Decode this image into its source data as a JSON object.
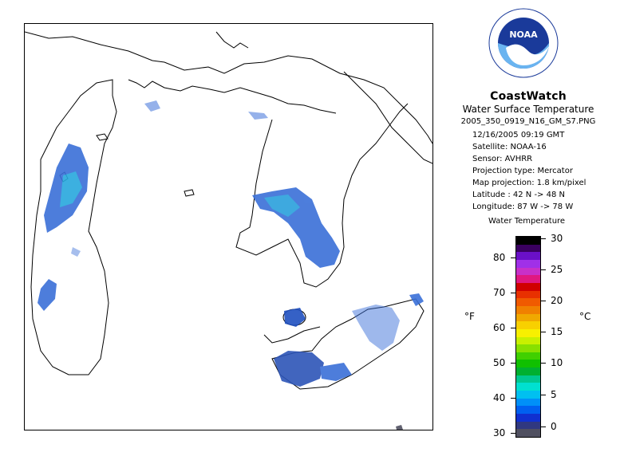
{
  "map": {
    "region": "Great Lakes (Lake Michigan, Lake Huron, Lake St. Clair, Lake Erie)"
  },
  "legend": {
    "app_title": "CoastWatch",
    "product": "Water Surface Temperature",
    "filename": "2005_350_0919_N16_GM_S7.PNG",
    "datetime": "12/16/2005   09:19 GMT",
    "satellite": "Satellite: NOAA-16",
    "sensor": "Sensor: AVHRR",
    "projection_type": "Projection type:  Mercator",
    "map_projection": "Map projection: 1.8 km/pixel",
    "latitude": "Latitude : 42 N  -> 48 N",
    "longitude": "Longitude: 87 W  -> 78 W",
    "scale_title": "Water Temperature",
    "logo_text": "NOAA",
    "unit_f": "°F",
    "unit_c": "°C",
    "fahrenheit_ticks": [
      "80",
      "70",
      "60",
      "50",
      "40",
      "30"
    ],
    "celsius_ticks": [
      "30",
      "25",
      "20",
      "15",
      "10",
      "5",
      "0"
    ],
    "colors": [
      "#000000",
      "#3a0060",
      "#6a10c8",
      "#a030e8",
      "#c830c8",
      "#e01880",
      "#d00000",
      "#e83000",
      "#f05a00",
      "#f08000",
      "#f0a800",
      "#f8d000",
      "#f8f000",
      "#c8f000",
      "#88e000",
      "#40d000",
      "#10c000",
      "#00b030",
      "#00c890",
      "#00e0d0",
      "#00c0f0",
      "#0090f8",
      "#0060f0",
      "#1030d0",
      "#303880",
      "#505060"
    ]
  }
}
